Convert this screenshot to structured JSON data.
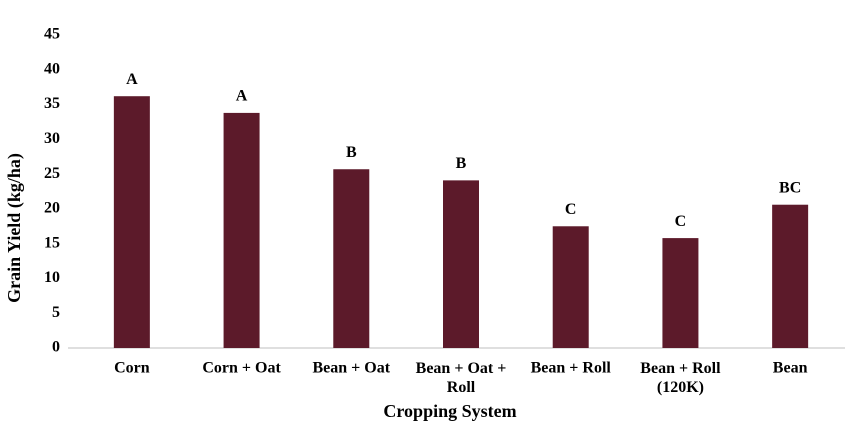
{
  "chart_data": {
    "type": "bar",
    "x_label": "Cropping System",
    "y_label": "Grain Yield (kg/ha)",
    "categories": [
      "Corn",
      "Corn + Oat",
      "Bean + Oat",
      "Bean + Oat +\nRoll",
      "Bean + Roll",
      "Bean + Roll\n(120K)",
      "Bean"
    ],
    "values": [
      36.2,
      33.8,
      25.7,
      24.1,
      17.5,
      15.8,
      20.6
    ],
    "annotations": [
      "A",
      "A",
      "B",
      "B",
      "C",
      "C",
      "BC"
    ],
    "color": "#5c1a2a",
    "ylim": [
      0,
      45
    ],
    "yticks": [
      0,
      5,
      10,
      15,
      20,
      25,
      30,
      35,
      40,
      45
    ],
    "grid": false
  }
}
